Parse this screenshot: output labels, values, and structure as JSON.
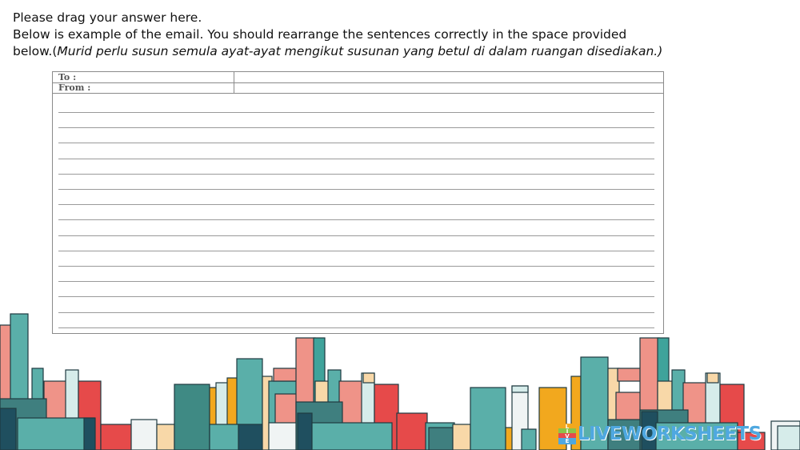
{
  "instructions": {
    "line1": "Please drag your answer here.",
    "line2": "Below is example of the email. You should rearrange the sentences correctly in the space provided",
    "line3_prefix": "below.(",
    "line3_italic": "Murid perlu susun semula ayat-ayat mengikut susunan yang betul di dalam ruangan disediakan.)"
  },
  "email_form": {
    "to_label": "To :",
    "from_label": "From :",
    "to_value": "",
    "from_value": ""
  },
  "watermark": {
    "badge": [
      "L",
      "I",
      "V",
      "E"
    ],
    "text": "LIVEWORKSHEETS"
  },
  "colors": {
    "teal": "#5aafa9",
    "dark_teal": "#1f4f5f",
    "coral": "#ef9388",
    "red": "#e64a4a",
    "orange": "#f2a81e",
    "cream": "#f8d8a8",
    "pale": "#ecf3f1"
  }
}
